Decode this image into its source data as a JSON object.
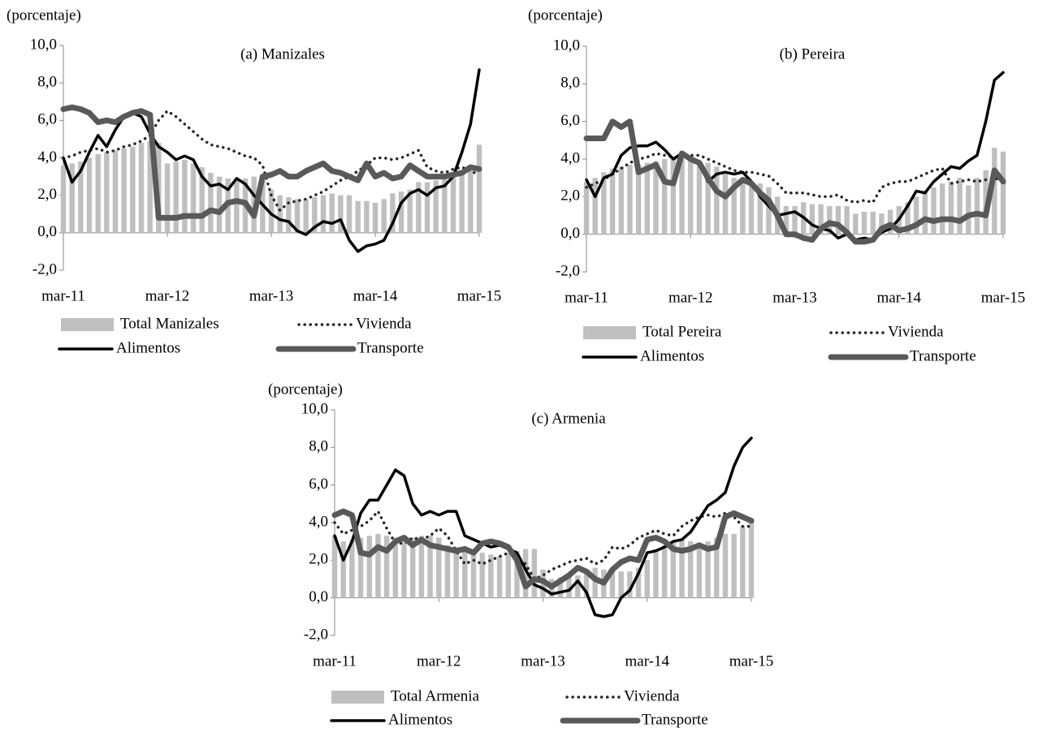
{
  "chart_data": [
    {
      "type": "combo",
      "title": "(a) Manizales",
      "y_label": "(porcentaje)",
      "categories": [
        "mar-11",
        null,
        null,
        null,
        null,
        null,
        null,
        null,
        null,
        null,
        null,
        null,
        "mar-12",
        null,
        null,
        null,
        null,
        null,
        null,
        null,
        null,
        null,
        null,
        null,
        "mar-13",
        null,
        null,
        null,
        null,
        null,
        null,
        null,
        null,
        null,
        null,
        null,
        "mar-14",
        null,
        null,
        null,
        null,
        null,
        null,
        null,
        null,
        null,
        null,
        null,
        "mar-15"
      ],
      "ylim": [
        -2,
        10
      ],
      "yticks": [
        {
          "value": -2,
          "label": "-2,0"
        },
        {
          "value": 0,
          "label": "0,0"
        },
        {
          "value": 2,
          "label": "2,0"
        },
        {
          "value": 4,
          "label": "4,0"
        },
        {
          "value": 6,
          "label": "6,0"
        },
        {
          "value": 8,
          "label": "8,0"
        },
        {
          "value": 10,
          "label": "10,0"
        }
      ],
      "series": [
        {
          "name": "Total Manizales",
          "kind": "bar",
          "color": "#bfbfbf",
          "values": [
            3.6,
            3.7,
            3.8,
            4.0,
            4.2,
            4.3,
            4.4,
            4.5,
            4.6,
            4.8,
            4.9,
            4.8,
            3.7,
            3.8,
            3.9,
            3.7,
            3.5,
            3.2,
            3.0,
            2.9,
            2.9,
            2.9,
            3.0,
            2.8,
            2.3,
            2.0,
            1.9,
            1.8,
            1.8,
            1.9,
            2.0,
            2.1,
            2.0,
            2.0,
            1.7,
            1.7,
            1.6,
            1.8,
            2.1,
            2.2,
            2.3,
            2.7,
            2.7,
            2.8,
            2.9,
            3.0,
            3.2,
            3.5,
            4.7
          ]
        },
        {
          "name": "Vivienda",
          "kind": "line",
          "style": "dotted",
          "color": "#262626",
          "values": [
            4.0,
            4.1,
            4.3,
            4.4,
            4.5,
            4.3,
            4.4,
            4.6,
            4.7,
            4.9,
            5.2,
            6.0,
            6.5,
            6.2,
            5.8,
            5.4,
            5.0,
            4.7,
            4.6,
            4.5,
            4.3,
            4.1,
            4.0,
            3.6,
            2.0,
            1.2,
            1.6,
            1.7,
            1.8,
            2.0,
            2.2,
            2.5,
            2.8,
            3.0,
            3.3,
            3.6,
            4.0,
            4.0,
            3.9,
            4.0,
            4.2,
            4.4,
            3.5,
            3.3,
            3.2,
            3.4,
            3.5,
            3.3,
            3.1
          ]
        },
        {
          "name": "Alimentos",
          "kind": "line",
          "style": "solid",
          "color": "#000000",
          "values": [
            4.0,
            2.7,
            3.3,
            4.3,
            5.2,
            4.6,
            5.5,
            6.2,
            6.4,
            6.2,
            5.3,
            4.6,
            4.3,
            3.9,
            4.1,
            3.9,
            3.0,
            2.5,
            2.6,
            2.3,
            2.9,
            2.6,
            2.0,
            1.5,
            1.0,
            0.7,
            0.6,
            0.1,
            -0.1,
            0.3,
            0.6,
            0.5,
            0.7,
            -0.4,
            -1.0,
            -0.7,
            -0.6,
            -0.4,
            0.5,
            1.6,
            2.1,
            2.3,
            2.0,
            2.4,
            2.5,
            3.0,
            4.3,
            5.8,
            8.7
          ]
        },
        {
          "name": "Transporte",
          "kind": "line",
          "style": "thick",
          "color": "#595959",
          "values": [
            6.6,
            6.7,
            6.6,
            6.4,
            5.9,
            6.0,
            5.9,
            6.2,
            6.4,
            6.5,
            6.3,
            0.8,
            0.8,
            0.8,
            0.9,
            0.9,
            0.9,
            1.2,
            1.1,
            1.6,
            1.7,
            1.6,
            0.9,
            3.0,
            3.1,
            3.3,
            3.0,
            3.0,
            3.3,
            3.5,
            3.7,
            3.3,
            3.2,
            3.0,
            2.8,
            3.7,
            3.0,
            3.2,
            2.9,
            3.0,
            3.6,
            3.3,
            3.0,
            3.0,
            3.0,
            3.1,
            3.2,
            3.5,
            3.4
          ]
        }
      ]
    },
    {
      "type": "combo",
      "title": "(b) Pereira",
      "y_label": "(porcentaje)",
      "categories": [
        "mar-11",
        null,
        null,
        null,
        null,
        null,
        null,
        null,
        null,
        null,
        null,
        null,
        "mar-12",
        null,
        null,
        null,
        null,
        null,
        null,
        null,
        null,
        null,
        null,
        null,
        "mar-13",
        null,
        null,
        null,
        null,
        null,
        null,
        null,
        null,
        null,
        null,
        null,
        "mar-14",
        null,
        null,
        null,
        null,
        null,
        null,
        null,
        null,
        null,
        null,
        null,
        "mar-15"
      ],
      "ylim": [
        -2,
        10
      ],
      "yticks": [
        {
          "value": -2,
          "label": "-2,0"
        },
        {
          "value": 0,
          "label": "0,0"
        },
        {
          "value": 2,
          "label": "2,0"
        },
        {
          "value": 4,
          "label": "4,0"
        },
        {
          "value": 6,
          "label": "6,0"
        },
        {
          "value": 8,
          "label": "8,0"
        },
        {
          "value": 10,
          "label": "10,0"
        }
      ],
      "series": [
        {
          "name": "Total Pereira",
          "kind": "bar",
          "color": "#bfbfbf",
          "values": [
            2.8,
            3.0,
            3.3,
            3.5,
            3.6,
            3.7,
            3.7,
            3.8,
            3.9,
            4.0,
            4.1,
            4.0,
            3.9,
            3.9,
            3.8,
            3.6,
            3.2,
            3.0,
            2.9,
            2.8,
            2.7,
            2.5,
            2.0,
            1.5,
            1.5,
            1.7,
            1.6,
            1.6,
            1.5,
            1.5,
            1.5,
            1.1,
            1.2,
            1.2,
            1.1,
            1.3,
            1.5,
            1.7,
            2.0,
            2.3,
            2.5,
            2.7,
            2.8,
            3.0,
            2.6,
            3.0,
            3.4,
            4.6,
            4.4
          ]
        },
        {
          "name": "Vivienda",
          "kind": "line",
          "style": "dotted",
          "color": "#262626",
          "values": [
            2.5,
            2.7,
            2.9,
            3.2,
            3.5,
            3.8,
            4.0,
            4.1,
            4.3,
            4.2,
            4.1,
            4.0,
            4.2,
            4.2,
            4.0,
            3.8,
            3.6,
            3.4,
            3.3,
            3.3,
            3.2,
            3.1,
            2.7,
            2.2,
            2.2,
            2.2,
            2.1,
            2.0,
            2.0,
            2.1,
            1.8,
            1.7,
            1.8,
            1.7,
            2.5,
            2.7,
            2.8,
            2.8,
            3.0,
            3.2,
            3.4,
            3.5,
            2.7,
            2.8,
            2.9,
            2.8,
            2.9,
            3.0,
            2.8
          ]
        },
        {
          "name": "Alimentos",
          "kind": "line",
          "style": "solid",
          "color": "#000000",
          "values": [
            2.9,
            2.0,
            3.0,
            3.2,
            4.2,
            4.6,
            4.7,
            4.7,
            4.9,
            4.5,
            4.0,
            4.3,
            4.0,
            3.8,
            2.8,
            3.2,
            3.3,
            3.2,
            3.3,
            2.8,
            2.0,
            1.5,
            1.0,
            1.1,
            1.2,
            0.9,
            0.5,
            0.3,
            0.2,
            -0.2,
            0.0,
            -0.3,
            -0.2,
            -0.3,
            0.1,
            0.3,
            0.8,
            1.5,
            2.3,
            2.2,
            2.8,
            3.2,
            3.6,
            3.5,
            3.9,
            4.2,
            6.0,
            8.2,
            8.6
          ]
        },
        {
          "name": "Transporte",
          "kind": "line",
          "style": "thick",
          "color": "#595959",
          "values": [
            5.1,
            5.1,
            5.1,
            6.0,
            5.7,
            6.0,
            3.3,
            3.5,
            3.7,
            2.8,
            2.7,
            4.3,
            4.0,
            3.8,
            3.0,
            2.3,
            2.0,
            2.5,
            2.9,
            2.7,
            2.2,
            1.8,
            1.0,
            0.0,
            0.0,
            -0.2,
            -0.3,
            0.3,
            0.6,
            0.5,
            0.1,
            -0.4,
            -0.4,
            -0.3,
            0.3,
            0.5,
            0.2,
            0.3,
            0.5,
            0.8,
            0.7,
            0.8,
            0.8,
            0.7,
            1.0,
            1.1,
            1.0,
            3.4,
            2.8
          ]
        }
      ]
    },
    {
      "type": "combo",
      "title": "(c) Armenia",
      "y_label": "(porcentaje)",
      "categories": [
        "mar-11",
        null,
        null,
        null,
        null,
        null,
        null,
        null,
        null,
        null,
        null,
        null,
        "mar-12",
        null,
        null,
        null,
        null,
        null,
        null,
        null,
        null,
        null,
        null,
        null,
        "mar-13",
        null,
        null,
        null,
        null,
        null,
        null,
        null,
        null,
        null,
        null,
        null,
        "mar-14",
        null,
        null,
        null,
        null,
        null,
        null,
        null,
        null,
        null,
        null,
        null,
        "mar-15"
      ],
      "ylim": [
        -2,
        10
      ],
      "yticks": [
        {
          "value": -2,
          "label": "-2,0"
        },
        {
          "value": 0,
          "label": "0,0"
        },
        {
          "value": 2,
          "label": "2,0"
        },
        {
          "value": 4,
          "label": "4,0"
        },
        {
          "value": 6,
          "label": "6,0"
        },
        {
          "value": 8,
          "label": "8,0"
        },
        {
          "value": 10,
          "label": "10,0"
        }
      ],
      "series": [
        {
          "name": "Total Armenia",
          "kind": "bar",
          "color": "#bfbfbf",
          "values": [
            3.3,
            3.0,
            3.1,
            3.2,
            3.3,
            3.4,
            3.3,
            3.2,
            3.1,
            3.2,
            3.3,
            3.3,
            3.2,
            2.8,
            2.7,
            2.6,
            2.5,
            2.4,
            2.3,
            2.2,
            2.4,
            2.5,
            2.6,
            2.6,
            1.5,
            1.0,
            1.1,
            1.2,
            1.2,
            1.3,
            1.6,
            1.5,
            1.5,
            1.4,
            1.4,
            1.6,
            2.0,
            2.6,
            2.8,
            3.0,
            3.1,
            3.0,
            2.8,
            3.0,
            3.2,
            3.4,
            3.4,
            3.8,
            4.2
          ]
        },
        {
          "name": "Vivienda",
          "kind": "line",
          "style": "dotted",
          "color": "#262626",
          "values": [
            4.0,
            3.4,
            3.6,
            3.8,
            4.1,
            4.6,
            3.7,
            2.9,
            2.9,
            3.2,
            3.1,
            3.3,
            3.7,
            3.3,
            2.5,
            1.8,
            2.0,
            1.8,
            2.0,
            2.2,
            2.4,
            2.2,
            1.8,
            1.0,
            1.2,
            1.5,
            1.7,
            1.9,
            2.0,
            2.1,
            1.8,
            2.0,
            2.7,
            2.6,
            2.8,
            3.2,
            3.4,
            3.6,
            3.4,
            3.3,
            3.8,
            4.1,
            4.3,
            4.4,
            4.3,
            4.5,
            4.3,
            3.8,
            3.8
          ]
        },
        {
          "name": "Alimentos",
          "kind": "line",
          "style": "solid",
          "color": "#000000",
          "values": [
            3.3,
            2.0,
            3.0,
            4.5,
            5.2,
            5.2,
            6.0,
            6.8,
            6.5,
            5.0,
            4.4,
            4.6,
            4.4,
            4.6,
            4.6,
            3.3,
            3.1,
            2.9,
            2.7,
            2.8,
            2.6,
            2.4,
            1.5,
            0.7,
            0.5,
            0.2,
            0.3,
            0.4,
            0.9,
            0.3,
            -0.9,
            -1.0,
            -0.9,
            0.0,
            0.4,
            1.3,
            2.4,
            2.5,
            2.7,
            3.0,
            3.1,
            3.5,
            4.2,
            4.9,
            5.2,
            5.6,
            7.0,
            8.0,
            8.5
          ]
        },
        {
          "name": "Transporte",
          "kind": "line",
          "style": "thick",
          "color": "#595959",
          "values": [
            4.4,
            4.6,
            4.4,
            2.4,
            2.3,
            2.7,
            2.5,
            3.0,
            3.2,
            2.8,
            3.1,
            2.8,
            2.7,
            2.6,
            2.5,
            2.6,
            2.4,
            2.9,
            3.0,
            2.9,
            2.7,
            2.0,
            0.6,
            1.0,
            0.9,
            0.6,
            0.9,
            1.2,
            1.6,
            1.4,
            1.0,
            0.8,
            1.5,
            1.9,
            2.1,
            2.0,
            3.1,
            3.2,
            3.0,
            2.6,
            2.5,
            2.6,
            2.8,
            2.6,
            2.7,
            4.3,
            4.5,
            4.3,
            4.1
          ]
        }
      ]
    }
  ]
}
